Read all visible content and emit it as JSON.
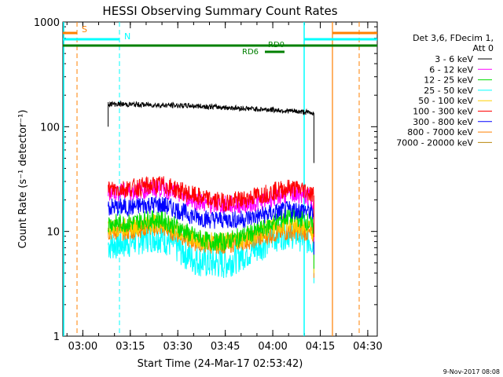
{
  "chart_data": {
    "type": "line",
    "title": "HESSI Observing Summary Count Rates",
    "xlabel": "Start Time (24-Mar-17 02:53:42)",
    "ylabel": "Count Rate (s⁻¹ detector⁻¹)",
    "y_scale": "log",
    "ylim": [
      1,
      1000
    ],
    "y_ticks": [
      {
        "v": 1,
        "label": "1"
      },
      {
        "v": 10,
        "label": "10"
      },
      {
        "v": 100,
        "label": "100"
      },
      {
        "v": 1000,
        "label": "1000"
      }
    ],
    "xlim": [
      "02:53:42",
      "04:33:00"
    ],
    "x_ticks": [
      "03:00",
      "03:15",
      "03:30",
      "03:45",
      "04:00",
      "04:15",
      "04:30"
    ],
    "legend": {
      "position": "right",
      "header": [
        "Det 3,6, FDecim 1,",
        "Att 0"
      ]
    },
    "series": [
      {
        "name": "3 - 6 keV",
        "color": "#000000",
        "t": [
          "03:08",
          "03:20",
          "03:35",
          "03:50",
          "04:00",
          "04:10",
          "04:13"
        ],
        "values": [
          165,
          162,
          158,
          150,
          145,
          138,
          135
        ]
      },
      {
        "name": "6 - 12 keV",
        "color": "#ff00ff",
        "t": [
          "03:08",
          "03:15",
          "03:20",
          "03:25",
          "03:30",
          "03:35",
          "03:40",
          "03:45",
          "03:50",
          "03:55",
          "04:00",
          "04:05",
          "04:10",
          "04:13"
        ],
        "values": [
          24,
          24,
          25,
          26,
          23,
          20,
          18,
          18,
          18,
          19,
          21,
          23,
          22,
          20
        ]
      },
      {
        "name": "12 - 25 keV",
        "color": "#00dd00",
        "t": [
          "03:08",
          "03:15",
          "03:20",
          "03:25",
          "03:30",
          "03:35",
          "03:40",
          "03:45",
          "03:50",
          "03:55",
          "04:00",
          "04:05",
          "04:10",
          "04:13"
        ],
        "values": [
          12,
          12,
          13,
          13,
          11,
          9,
          8,
          8,
          9,
          10,
          12,
          14,
          13,
          11
        ]
      },
      {
        "name": "25 - 50 keV",
        "color": "#00ffff",
        "t": [
          "03:08",
          "03:15",
          "03:20",
          "03:25",
          "03:30",
          "03:35",
          "03:40",
          "03:45",
          "03:50",
          "03:55",
          "04:00",
          "04:05",
          "04:10",
          "04:13"
        ],
        "values": [
          7.5,
          8,
          9,
          9,
          7,
          5.5,
          5,
          5,
          6,
          7,
          9,
          10,
          9,
          8
        ]
      },
      {
        "name": "50 - 100 keV",
        "color": "#ffd000",
        "t": [
          "03:08",
          "03:15",
          "03:20",
          "03:25",
          "03:30",
          "03:35",
          "03:40",
          "03:45",
          "03:50",
          "03:55",
          "04:00",
          "04:05",
          "04:10",
          "04:13"
        ],
        "values": [
          11,
          11,
          12,
          12,
          10,
          8.5,
          8,
          8,
          8.5,
          9.5,
          11,
          12,
          11,
          10
        ]
      },
      {
        "name": "100 - 300 keV",
        "color": "#ff0000",
        "t": [
          "03:08",
          "03:15",
          "03:20",
          "03:25",
          "03:30",
          "03:35",
          "03:40",
          "03:45",
          "03:50",
          "03:55",
          "04:00",
          "04:05",
          "04:10",
          "04:13"
        ],
        "values": [
          25,
          26,
          27,
          28,
          25,
          22,
          20,
          19,
          20,
          22,
          24,
          26,
          25,
          22
        ]
      },
      {
        "name": "300 - 800 keV",
        "color": "#0000ff",
        "t": [
          "03:08",
          "03:15",
          "03:20",
          "03:25",
          "03:30",
          "03:35",
          "03:40",
          "03:45",
          "03:50",
          "03:55",
          "04:00",
          "04:05",
          "04:10",
          "04:13"
        ],
        "values": [
          17,
          17,
          18,
          18,
          16,
          14,
          13,
          13,
          13,
          14,
          15,
          16,
          16,
          15
        ]
      },
      {
        "name": "800 - 7000 keV",
        "color": "#ff8000",
        "t": [
          "03:08",
          "03:15",
          "03:20",
          "03:25",
          "03:30",
          "03:35",
          "03:40",
          "03:45",
          "03:50",
          "03:55",
          "04:00",
          "04:05",
          "04:10",
          "04:13"
        ],
        "values": [
          10,
          10,
          11,
          11,
          9.5,
          8,
          7.5,
          7.5,
          8,
          8.5,
          9.5,
          10,
          10,
          9
        ]
      },
      {
        "name": "7000 - 20000 keV",
        "color": "#b8860b",
        "t": [],
        "values": []
      }
    ],
    "flags": [
      {
        "label": "S",
        "color": "#ff8000"
      },
      {
        "label": "N",
        "color": "#00ffff"
      },
      {
        "label": "RD0",
        "color": "#008000"
      },
      {
        "label": "RD6",
        "color": "#008000"
      }
    ],
    "footer_date": "9-Nov-2017 08:08"
  }
}
